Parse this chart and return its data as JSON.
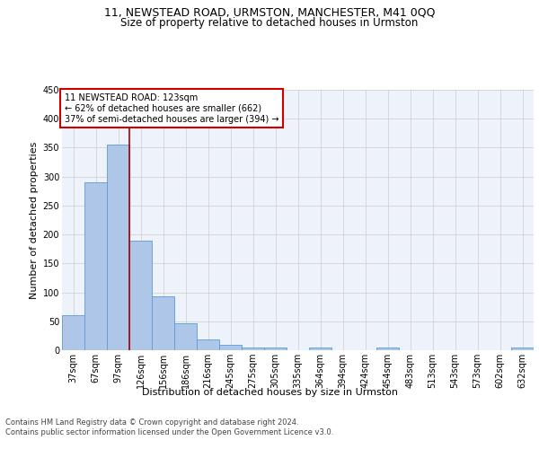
{
  "title": "11, NEWSTEAD ROAD, URMSTON, MANCHESTER, M41 0QQ",
  "subtitle": "Size of property relative to detached houses in Urmston",
  "xlabel": "Distribution of detached houses by size in Urmston",
  "ylabel": "Number of detached properties",
  "bar_color": "#aec6e8",
  "bar_edge_color": "#5b9bd5",
  "background_color": "#eef2fa",
  "grid_color": "#cccccc",
  "categories": [
    "37sqm",
    "67sqm",
    "97sqm",
    "126sqm",
    "156sqm",
    "186sqm",
    "216sqm",
    "245sqm",
    "275sqm",
    "305sqm",
    "335sqm",
    "364sqm",
    "394sqm",
    "424sqm",
    "454sqm",
    "483sqm",
    "513sqm",
    "543sqm",
    "573sqm",
    "602sqm",
    "632sqm"
  ],
  "values": [
    60,
    290,
    355,
    190,
    93,
    47,
    19,
    9,
    5,
    5,
    0,
    5,
    0,
    0,
    5,
    0,
    0,
    0,
    0,
    0,
    5
  ],
  "ylim": [
    0,
    450
  ],
  "yticks": [
    0,
    50,
    100,
    150,
    200,
    250,
    300,
    350,
    400,
    450
  ],
  "annotation_box_text": "11 NEWSTEAD ROAD: 123sqm\n← 62% of detached houses are smaller (662)\n37% of semi-detached houses are larger (394) →",
  "annotation_box_color": "#ffffff",
  "annotation_box_edge_color": "#cc0000",
  "vline_color": "#aa0000",
  "footer_line1": "Contains HM Land Registry data © Crown copyright and database right 2024.",
  "footer_line2": "Contains public sector information licensed under the Open Government Licence v3.0.",
  "title_fontsize": 9,
  "subtitle_fontsize": 8.5,
  "ylabel_fontsize": 8,
  "xlabel_fontsize": 8,
  "tick_fontsize": 7,
  "annot_fontsize": 7,
  "footer_fontsize": 6
}
